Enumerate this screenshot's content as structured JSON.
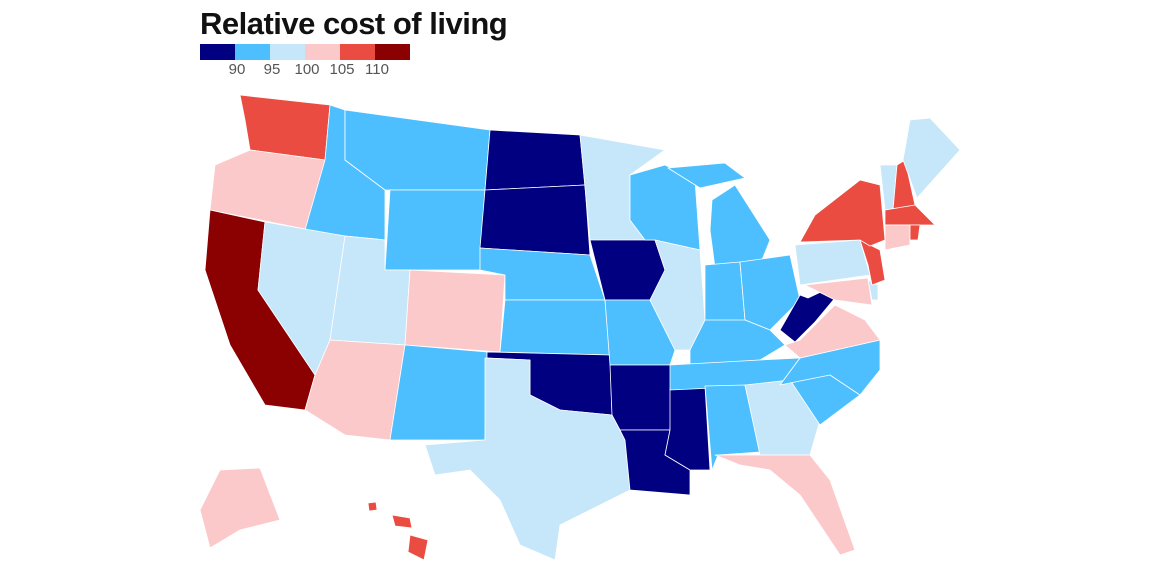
{
  "title": "Relative cost of living",
  "legend": {
    "colors": [
      "#000080",
      "#4dbfff",
      "#c6e6fa",
      "#fcc9cb",
      "#eb4c41",
      "#8b0000"
    ],
    "labels": [
      "90",
      "95",
      "100",
      "105",
      "110"
    ]
  },
  "state_categories": {
    "WA": 4,
    "OR": 3,
    "CA": 5,
    "ID": 1,
    "NV": 2,
    "MT": 1,
    "WY": 1,
    "UT": 2,
    "AZ": 3,
    "CO": 3,
    "NM": 1,
    "ND": 0,
    "SD": 0,
    "NE": 1,
    "KS": 1,
    "OK": 0,
    "TX": 2,
    "MN": 2,
    "IA": 0,
    "MO": 1,
    "AR": 0,
    "LA": 0,
    "MS": 0,
    "WI": 1,
    "IL": 2,
    "MI": 1,
    "IN": 1,
    "OH": 1,
    "KY": 1,
    "TN": 1,
    "AL": 1,
    "GA": 2,
    "FL": 3,
    "SC": 1,
    "NC": 1,
    "VA": 3,
    "WV": 0,
    "MD": 3,
    "DE": 2,
    "PA": 2,
    "NJ": 4,
    "NY": 4,
    "CT": 3,
    "RI": 4,
    "MA": 4,
    "VT": 2,
    "NH": 4,
    "ME": 2,
    "AK": 3,
    "HI": 4
  }
}
